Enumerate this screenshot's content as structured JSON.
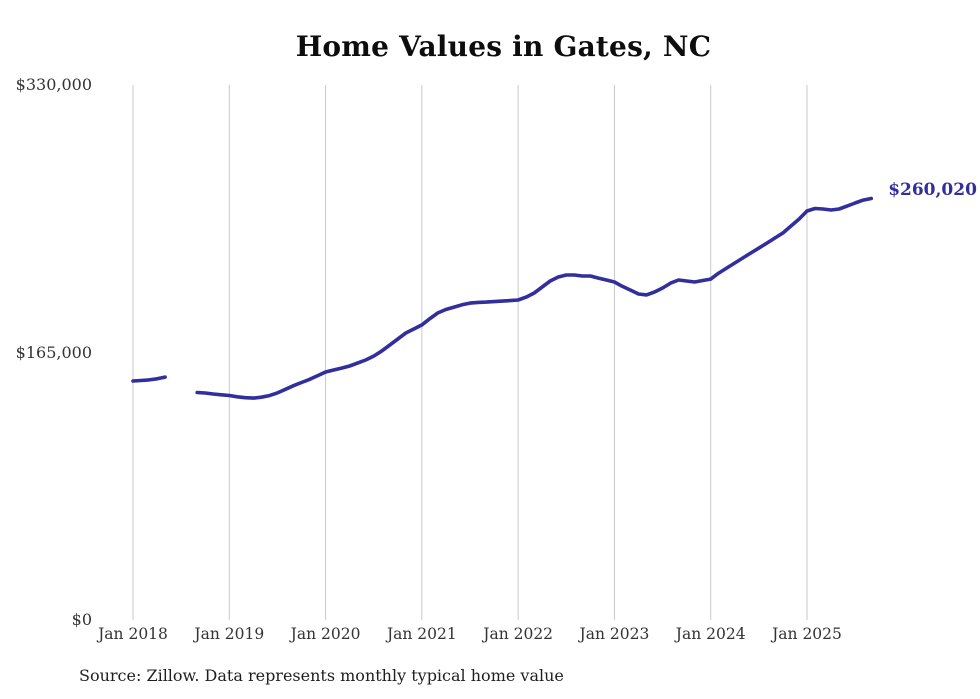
{
  "title": "Home Values in Gates, NC",
  "source_note": "Source: Zillow. Data represents monthly typical home value",
  "end_label": "$260,020",
  "colors": {
    "line": "#322f9d",
    "end_label": "#322f9d",
    "grid": "#c9c9c9",
    "axis_text": "#333333",
    "title_text": "#0d0d0d",
    "source_text": "#1f1f1f",
    "background": "#ffffff"
  },
  "chart_data": {
    "type": "line",
    "title": "Home Values in Gates, NC",
    "unit": "USD",
    "frequency": "monthly",
    "grid": "vertical-only",
    "legend": "none",
    "ylim": [
      0,
      330000
    ],
    "y_ticks": [
      {
        "value": 0,
        "label": "$0"
      },
      {
        "value": 165000,
        "label": "$165,000"
      },
      {
        "value": 330000,
        "label": "$330,000"
      }
    ],
    "x_tick_labels": [
      "Jan 2018",
      "Jan 2019",
      "Jan 2020",
      "Jan 2021",
      "Jan 2022",
      "Jan 2023",
      "Jan 2024",
      "Jan 2025"
    ],
    "x_tick_months": [
      "2018-01",
      "2019-01",
      "2020-01",
      "2021-01",
      "2022-01",
      "2023-01",
      "2024-01",
      "2025-01"
    ],
    "gap_note": "no data Jun 2018 - Aug 2018",
    "last_point": {
      "month": "2025-09",
      "value": 260020,
      "label": "$260,020"
    },
    "series": [
      {
        "name": "Typical home value",
        "points": [
          [
            "2018-01",
            147400
          ],
          [
            "2018-02",
            147700
          ],
          [
            "2018-03",
            148100
          ],
          [
            "2018-04",
            148800
          ],
          [
            "2018-05",
            149800
          ],
          [
            "2018-06",
            null
          ],
          [
            "2018-07",
            null
          ],
          [
            "2018-08",
            null
          ],
          [
            "2018-09",
            140300
          ],
          [
            "2018-10",
            140000
          ],
          [
            "2018-11",
            139400
          ],
          [
            "2018-12",
            138900
          ],
          [
            "2019-01",
            138500
          ],
          [
            "2019-02",
            137700
          ],
          [
            "2019-03",
            137100
          ],
          [
            "2019-04",
            136900
          ],
          [
            "2019-05",
            137400
          ],
          [
            "2019-06",
            138400
          ],
          [
            "2019-07",
            140100
          ],
          [
            "2019-08",
            142300
          ],
          [
            "2019-09",
            144500
          ],
          [
            "2019-10",
            146500
          ],
          [
            "2019-11",
            148400
          ],
          [
            "2019-12",
            150700
          ],
          [
            "2020-01",
            153000
          ],
          [
            "2020-02",
            154200
          ],
          [
            "2020-03",
            155400
          ],
          [
            "2020-04",
            156700
          ],
          [
            "2020-05",
            158500
          ],
          [
            "2020-06",
            160400
          ],
          [
            "2020-07",
            162800
          ],
          [
            "2020-08",
            165900
          ],
          [
            "2020-09",
            169600
          ],
          [
            "2020-10",
            173300
          ],
          [
            "2020-11",
            177000
          ],
          [
            "2020-12",
            179500
          ],
          [
            "2021-01",
            182000
          ],
          [
            "2021-02",
            185900
          ],
          [
            "2021-03",
            189400
          ],
          [
            "2021-04",
            191500
          ],
          [
            "2021-05",
            193000
          ],
          [
            "2021-06",
            194400
          ],
          [
            "2021-07",
            195500
          ],
          [
            "2021-08",
            195900
          ],
          [
            "2021-09",
            196100
          ],
          [
            "2021-10",
            196400
          ],
          [
            "2021-11",
            196700
          ],
          [
            "2021-12",
            197000
          ],
          [
            "2022-01",
            197400
          ],
          [
            "2022-02",
            199200
          ],
          [
            "2022-03",
            201700
          ],
          [
            "2022-04",
            205400
          ],
          [
            "2022-05",
            209100
          ],
          [
            "2022-06",
            211600
          ],
          [
            "2022-07",
            212800
          ],
          [
            "2022-08",
            212800
          ],
          [
            "2022-09",
            212200
          ],
          [
            "2022-10",
            212200
          ],
          [
            "2022-11",
            210900
          ],
          [
            "2022-12",
            209700
          ],
          [
            "2023-01",
            208500
          ],
          [
            "2023-02",
            205800
          ],
          [
            "2023-03",
            203500
          ],
          [
            "2023-04",
            201100
          ],
          [
            "2023-05",
            200500
          ],
          [
            "2023-06",
            202300
          ],
          [
            "2023-07",
            204800
          ],
          [
            "2023-08",
            207800
          ],
          [
            "2023-09",
            209700
          ],
          [
            "2023-10",
            209100
          ],
          [
            "2023-11",
            208500
          ],
          [
            "2023-12",
            209400
          ],
          [
            "2024-01",
            210300
          ],
          [
            "2024-02",
            214000
          ],
          [
            "2024-03",
            217100
          ],
          [
            "2024-04",
            220200
          ],
          [
            "2024-05",
            223300
          ],
          [
            "2024-06",
            226400
          ],
          [
            "2024-07",
            229400
          ],
          [
            "2024-08",
            232500
          ],
          [
            "2024-09",
            235600
          ],
          [
            "2024-10",
            238700
          ],
          [
            "2024-11",
            243000
          ],
          [
            "2024-12",
            247300
          ],
          [
            "2025-01",
            252300
          ],
          [
            "2025-02",
            253800
          ],
          [
            "2025-03",
            253500
          ],
          [
            "2025-04",
            252900
          ],
          [
            "2025-05",
            253500
          ],
          [
            "2025-06",
            255300
          ],
          [
            "2025-07",
            257200
          ],
          [
            "2025-08",
            259000
          ],
          [
            "2025-09",
            260020
          ]
        ]
      }
    ]
  }
}
